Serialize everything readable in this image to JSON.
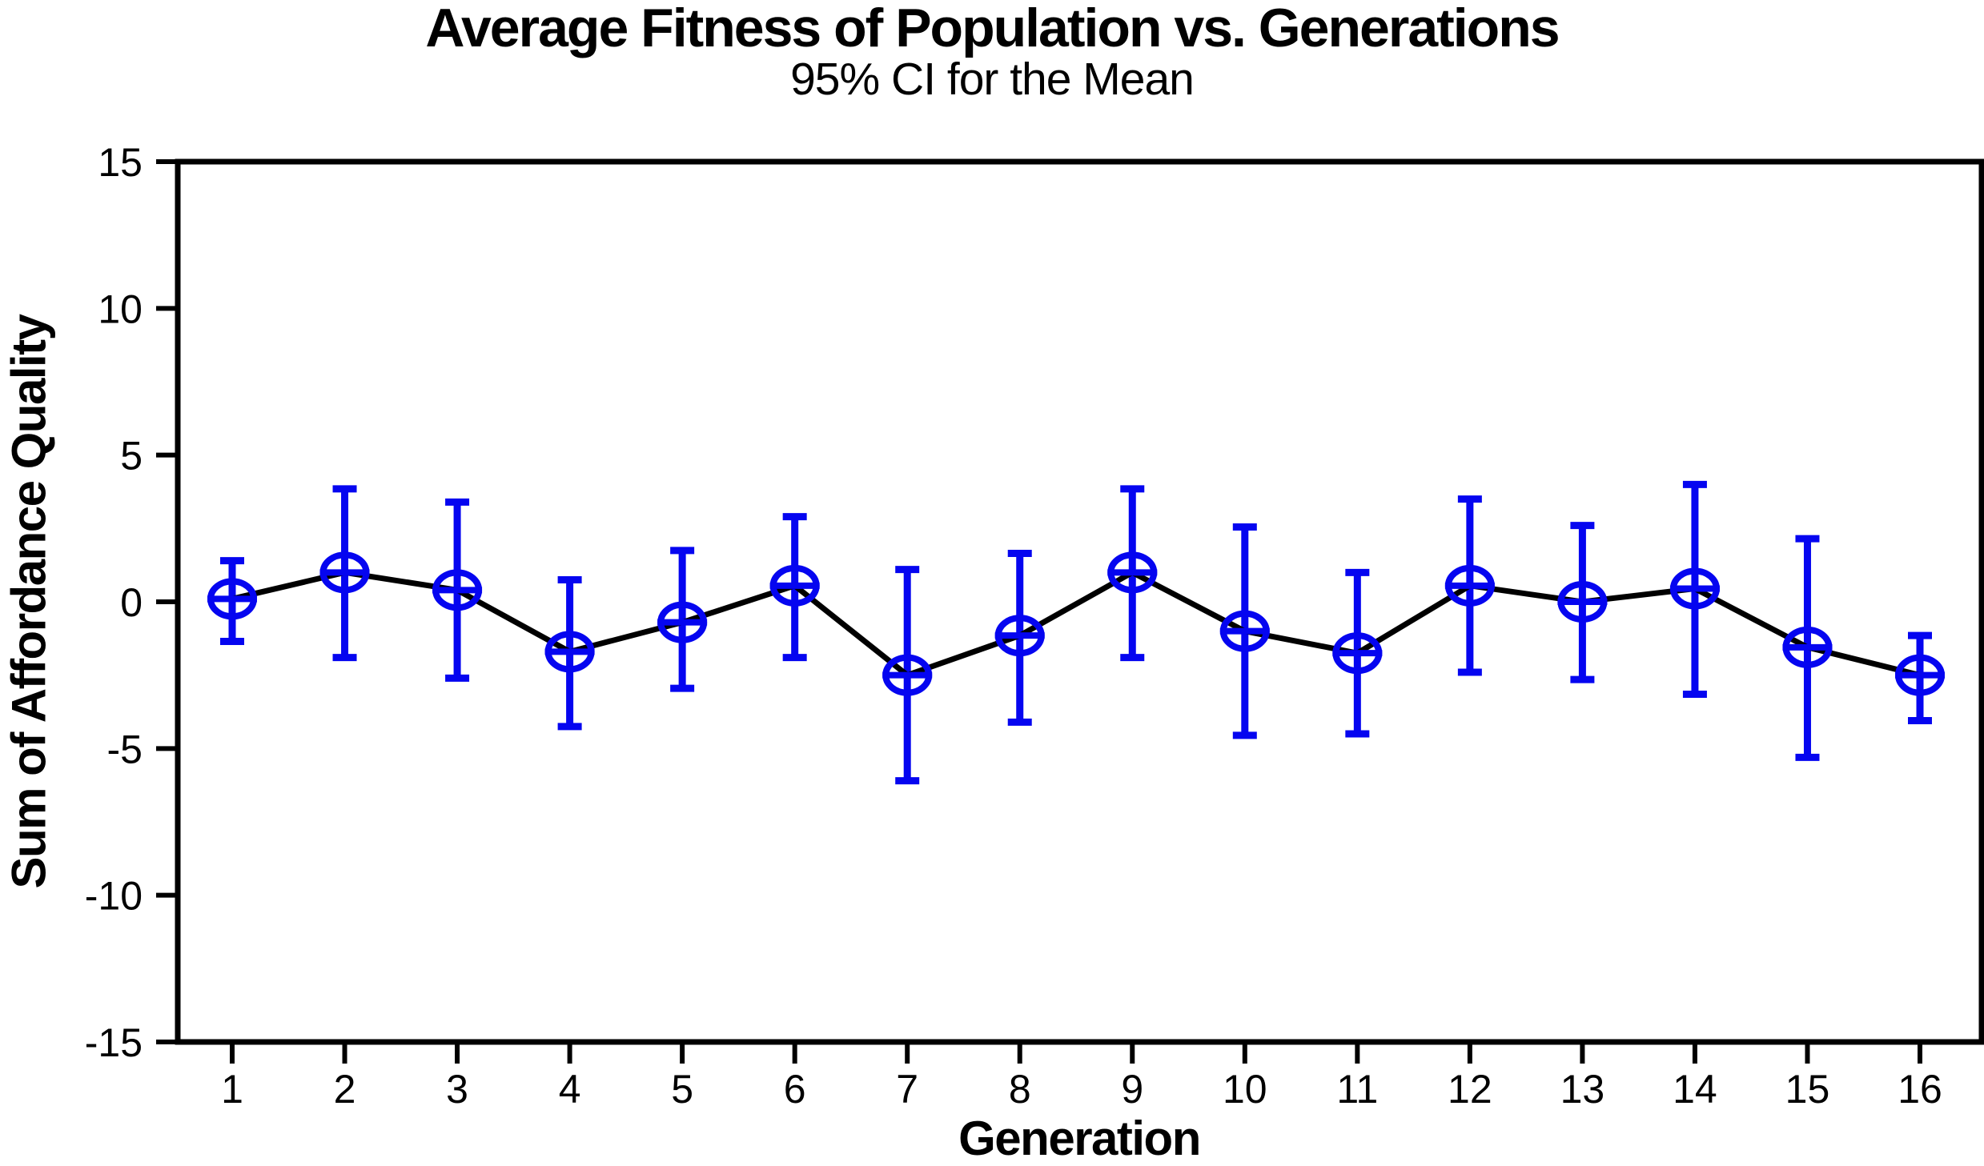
{
  "chart_data": {
    "type": "line",
    "title": "Average Fitness of Population vs. Generations",
    "subtitle": "95% CI for the Mean",
    "xlabel": "Generation",
    "ylabel": "Sum of Affordance Quality",
    "x": [
      1,
      2,
      3,
      4,
      5,
      6,
      7,
      8,
      9,
      10,
      11,
      12,
      13,
      14,
      15,
      16
    ],
    "series": [
      {
        "name": "Mean",
        "values": [
          0.1,
          1.0,
          0.4,
          -1.7,
          -0.7,
          0.55,
          -2.5,
          -1.15,
          1.0,
          -1.0,
          -1.75,
          0.55,
          0.0,
          0.45,
          -1.55,
          -2.5
        ]
      },
      {
        "name": "95% CI lower",
        "values": [
          -1.35,
          -1.9,
          -2.6,
          -4.25,
          -2.95,
          -1.9,
          -6.1,
          -4.1,
          -1.9,
          -4.55,
          -4.5,
          -2.4,
          -2.65,
          -3.15,
          -5.3,
          -4.05
        ]
      },
      {
        "name": "95% CI upper",
        "values": [
          1.4,
          3.85,
          3.4,
          0.75,
          1.75,
          2.9,
          1.1,
          1.65,
          3.85,
          2.55,
          1.0,
          3.5,
          2.6,
          4.0,
          2.15,
          -1.15
        ]
      }
    ],
    "ylim": [
      -15,
      15
    ],
    "yticks": [
      15,
      10,
      5,
      0,
      -5,
      -10,
      -15
    ],
    "grid": false,
    "legend_position": "none",
    "marker": "open-circle-with-crossbar",
    "error_bar_color": "#0505f0",
    "marker_color": "#0505f0",
    "line_color": "#000000",
    "axis_color": "#000000",
    "text_color": "#000000",
    "background_color": "#ffffff"
  }
}
